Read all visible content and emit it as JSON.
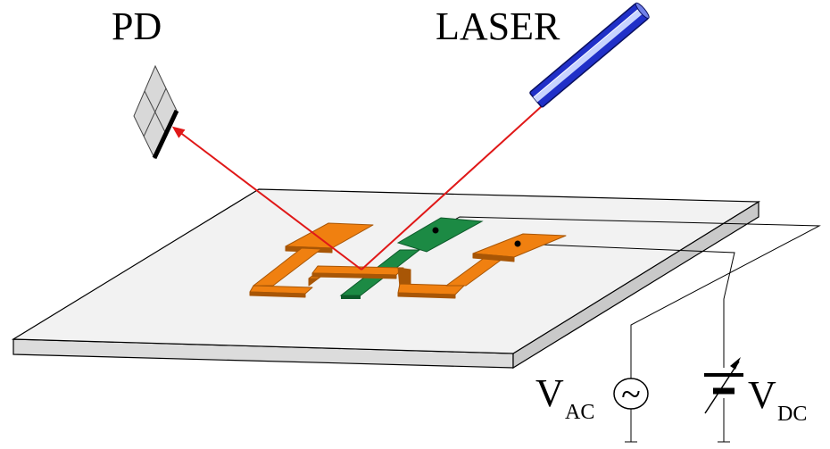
{
  "labels": {
    "pd": "PD",
    "laser": "LASER",
    "vac_main": "V",
    "vac_sub": "AC",
    "vdc_main": "V",
    "vdc_sub": "DC",
    "ac_symbol": "~"
  },
  "colors": {
    "electrode": "#f08010",
    "electrode_dark": "#a85606",
    "cantilever": "#1c8a44",
    "cantilever_dark": "#0d5a2a",
    "beam": "#e01818",
    "laser_body": "#2030c8",
    "laser_light": "#c8d4ff",
    "substrate": "#f0f0f0"
  }
}
